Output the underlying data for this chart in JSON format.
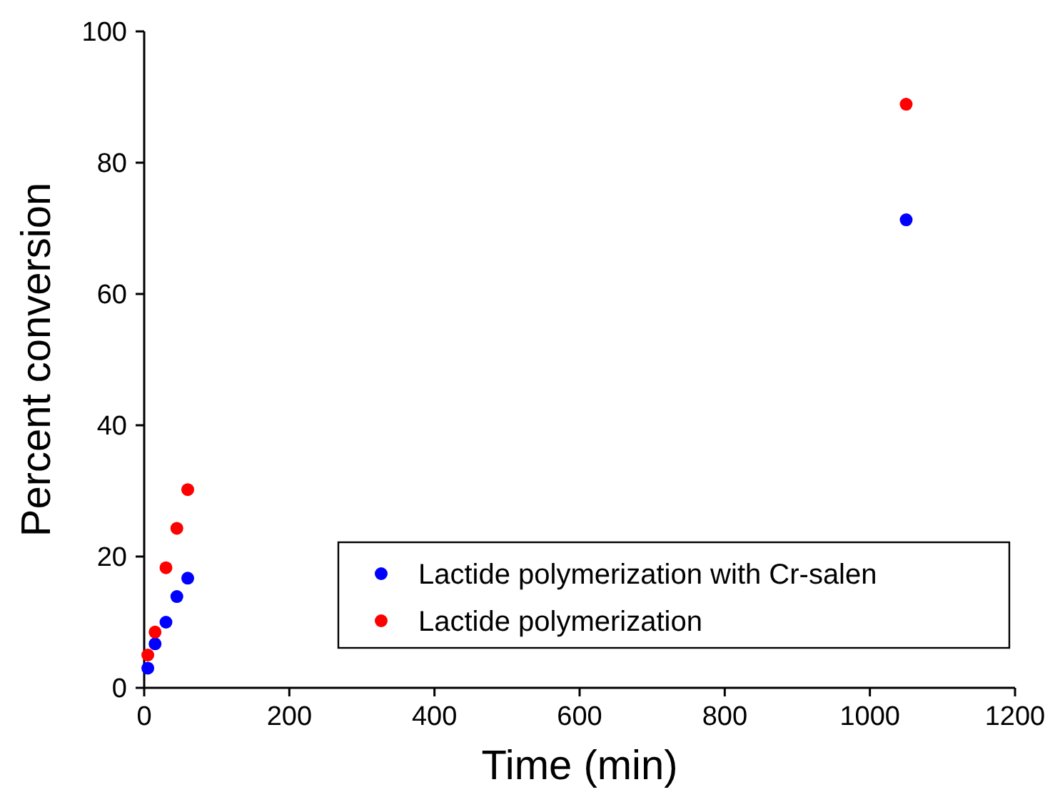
{
  "chart_data": {
    "type": "scatter",
    "xlabel": "Time (min)",
    "ylabel": "Percent conversion",
    "x": [
      5,
      15,
      30,
      45,
      60,
      1050
    ],
    "series": [
      {
        "name": "Lactide polymerization with Cr-salen",
        "color": "#0000ff",
        "values": [
          3,
          6.7,
          10,
          13.9,
          16.7,
          71.3
        ]
      },
      {
        "name": "Lactide polymerization",
        "color": "#ff0000",
        "values": [
          5,
          8.5,
          18.3,
          24.3,
          30.2,
          88.9
        ]
      }
    ],
    "xlim": [
      0,
      1200
    ],
    "xticks": [
      0,
      200,
      400,
      600,
      800,
      1000,
      1200
    ],
    "ylim": [
      0,
      100
    ],
    "yticks": [
      0,
      20,
      40,
      60,
      80,
      100
    ],
    "legend": "bottom right",
    "marker": "circle",
    "grid": false
  }
}
